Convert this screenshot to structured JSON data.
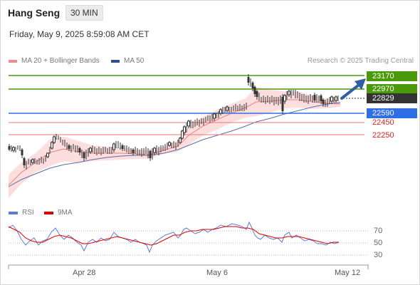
{
  "header": {
    "title": "Hang Seng",
    "timeframe": "30 MIN",
    "timestamp": "Friday, May 9, 2025 8:59:08 AM CET"
  },
  "legend": {
    "bb_label": "MA 20 + Bollinger Bands",
    "ma50_label": "MA 50",
    "credit": "Research © 2025 Trading Central",
    "rsi_label": "RSI",
    "rsi_ma_label": "9MA"
  },
  "colors": {
    "green": "#4a9a0a",
    "blue": "#2f6fe6",
    "red": "#f07070",
    "bb_fill": "#fcdede",
    "ma50": "#5a6ea8",
    "rsi": "#5b7bd8",
    "rsi_ma": "#e00000",
    "current": "#333333",
    "arrow": "#2e5fa3"
  },
  "levels": [
    {
      "label": "23170",
      "kind": "resistance-strong",
      "bg": "#4a9a0a",
      "fg": "#ffffff"
    },
    {
      "label": "22970",
      "kind": "resistance",
      "bg": "#4a9a0a",
      "fg": "#ffffff"
    },
    {
      "label": "22829",
      "kind": "current",
      "bg": "#333333",
      "fg": "#ffffff"
    },
    {
      "label": "22590",
      "kind": "pivot",
      "bg": "#2f6fe6",
      "fg": "#ffffff"
    },
    {
      "label": "22450",
      "kind": "support",
      "bg": "none",
      "fg": "#e02020"
    },
    {
      "label": "22250",
      "kind": "support-strong",
      "bg": "none",
      "fg": "#e02020"
    }
  ],
  "rsi_axis": [
    "70",
    "50",
    "30"
  ],
  "x_axis": [
    "Apr 28",
    "May 6",
    "May 12"
  ]
}
